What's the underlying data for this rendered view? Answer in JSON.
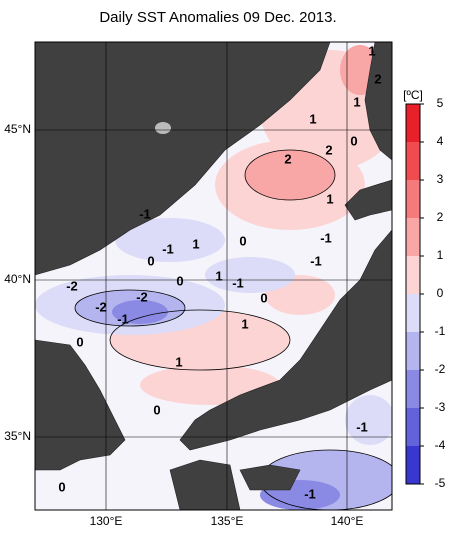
{
  "title": "Daily SST Anomalies 09 Dec. 2013.",
  "lat_labels": [
    "45°N",
    "40°N",
    "35°N"
  ],
  "lon_labels": [
    "130°E",
    "135°E",
    "140°E"
  ],
  "colorbar": {
    "unit": "[ºC]",
    "ticks": [
      5,
      4,
      3,
      2,
      1,
      0,
      -1,
      -2,
      -3,
      -4,
      -5
    ],
    "colors": [
      "#e8202a",
      "#f04c50",
      "#f57a7c",
      "#f9a6a6",
      "#fcd4d4",
      "#dcdcf8",
      "#b4b4ee",
      "#8a8ae4",
      "#6262da",
      "#3838d0"
    ]
  },
  "contour_labels": [
    "1",
    "2",
    "1",
    "1",
    "0",
    "2",
    "2",
    "1",
    "-1",
    "-1",
    "-1",
    "1",
    "0",
    "0",
    "1",
    "-1",
    "0",
    "-1",
    "-2",
    "-2",
    "-2",
    "-1",
    "0",
    "1",
    "0",
    "1",
    "0",
    "0",
    "-1",
    "-1"
  ]
}
